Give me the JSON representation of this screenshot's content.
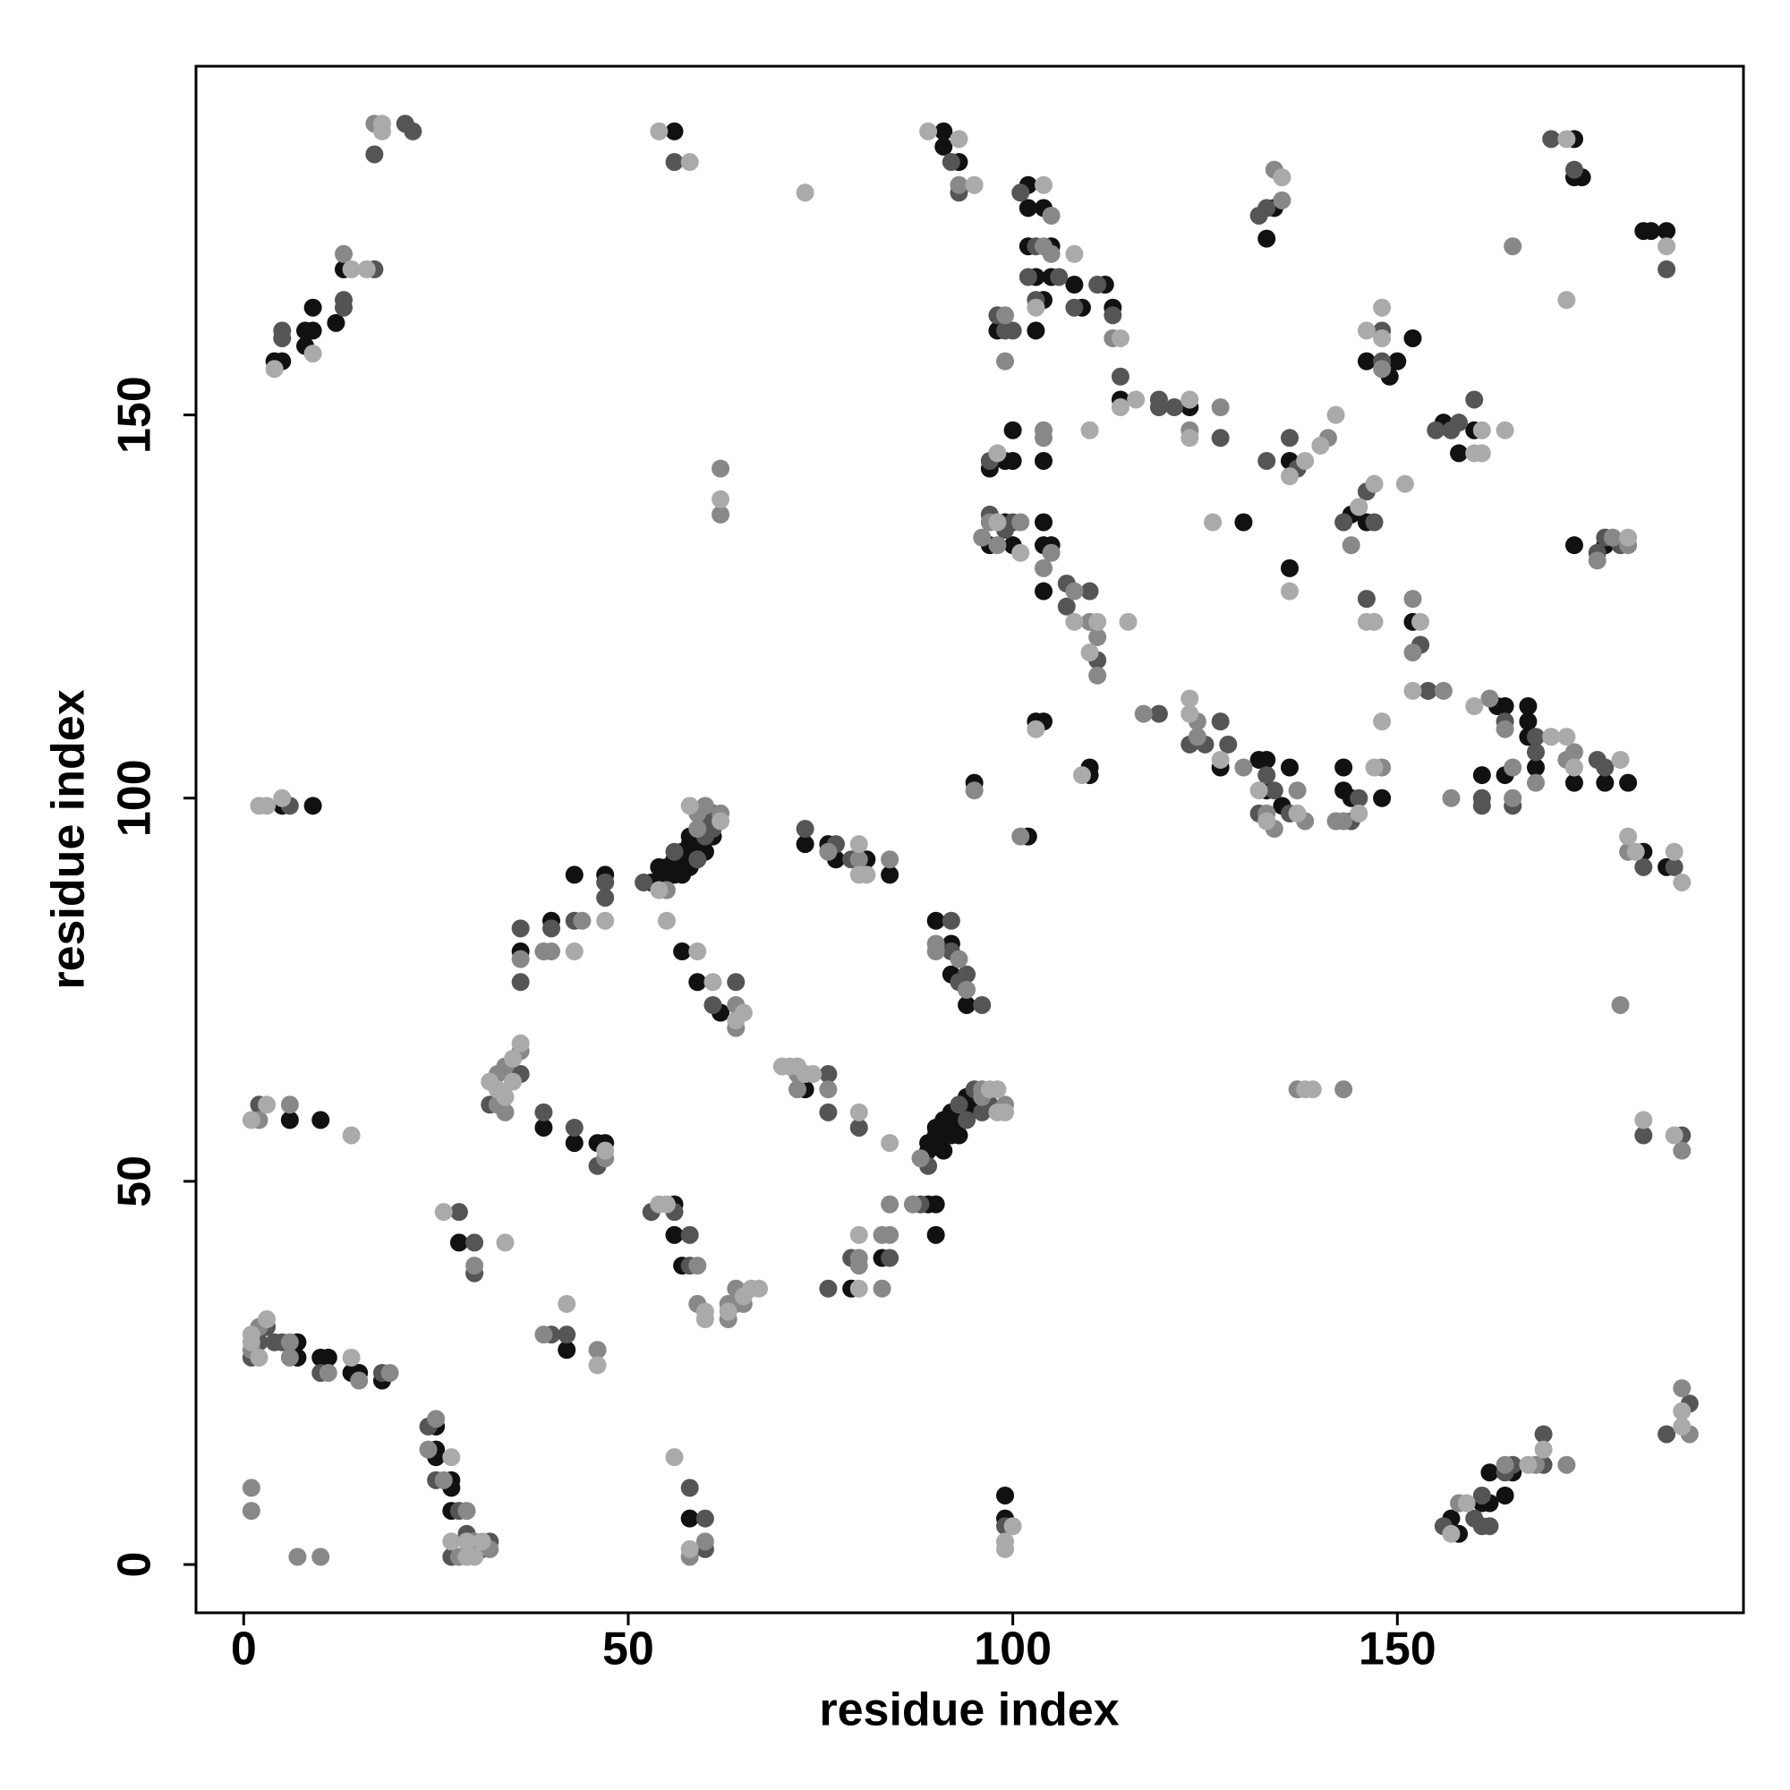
{
  "chart_data": {
    "type": "scatter",
    "xlabel": "residue index",
    "ylabel": "residue index",
    "xlim": [
      -6.2,
      195
    ],
    "ylim": [
      -6.3,
      195.5
    ],
    "xticks": [
      0,
      50,
      100,
      150
    ],
    "yticks": [
      0,
      50,
      100,
      150
    ],
    "series": [
      {
        "color": "#111111",
        "x": [
          4,
          5,
          8,
          8,
          9,
          9,
          12,
          13,
          56,
          91,
          91,
          93,
          102,
          102,
          104,
          102,
          105,
          103,
          105,
          108,
          109,
          112,
          113,
          114,
          123,
          98,
          103,
          104,
          97,
          99,
          100,
          100,
          104,
          97,
          99,
          100,
          104,
          104,
          105,
          104,
          103,
          104,
          102,
          95,
          110,
          110,
          127,
          132,
          133,
          133,
          135,
          136,
          134,
          133,
          130,
          136,
          136,
          144,
          146,
          152,
          149,
          150,
          152,
          146,
          156,
          158,
          160,
          143,
          143,
          144,
          148,
          161,
          163,
          164,
          164,
          167,
          167,
          167,
          168,
          173,
          177,
          180,
          173,
          177,
          173,
          173,
          174,
          182,
          183,
          185,
          182,
          185,
          158,
          157,
          161,
          162,
          162,
          165,
          164,
          99,
          99,
          5,
          9,
          6,
          10,
          7,
          7,
          10,
          11,
          14,
          15,
          18,
          25,
          25,
          25,
          27,
          27,
          27,
          28,
          42,
          36,
          40,
          43,
          47,
          39,
          43,
          46,
          47,
          53,
          54,
          54,
          55,
          55,
          56,
          56,
          57,
          57,
          57,
          58,
          58,
          58,
          59,
          60,
          61,
          57,
          59,
          62,
          73,
          73,
          76,
          77,
          81,
          84,
          90,
          92,
          92,
          94,
          89,
          89,
          90,
          90,
          90,
          91,
          91,
          92,
          91,
          92,
          92,
          93,
          93,
          94,
          94,
          95,
          56,
          56,
          57,
          79,
          83,
          89,
          90,
          90,
          58
        ],
        "values": [
          157,
          157,
          159,
          161,
          161,
          164,
          162,
          169,
          187,
          187,
          185,
          183,
          180,
          177,
          177,
          172,
          172,
          168,
          168,
          167,
          164,
          167,
          164,
          152,
          151,
          161,
          161,
          165,
          143,
          144,
          144,
          148,
          144,
          133,
          136,
          133,
          136,
          133,
          133,
          127,
          110,
          110,
          95,
          102,
          103,
          104,
          104,
          105,
          105,
          101,
          99,
          104,
          177,
          173,
          136,
          144,
          130,
          137,
          136,
          123,
          155,
          157,
          160,
          157,
          149,
          145,
          148,
          104,
          101,
          100,
          100,
          103,
          112,
          112,
          103,
          112,
          110,
          108,
          104,
          102,
          102,
          102,
          133,
          133,
          186,
          181,
          181,
          174,
          174,
          174,
          93,
          91,
          4,
          6,
          8,
          8,
          12,
          12,
          9,
          9,
          6,
          99,
          99,
          58,
          58,
          29,
          27,
          27,
          27,
          25,
          25,
          24,
          18,
          15,
          14,
          11,
          10,
          7,
          42,
          28,
          80,
          84,
          90,
          90,
          57,
          55,
          55,
          55,
          89,
          89,
          91,
          90,
          91,
          90,
          92,
          90,
          92,
          93,
          91,
          94,
          95,
          94,
          93,
          95,
          80,
          76,
          72,
          62,
          94,
          94,
          92,
          92,
          90,
          84,
          81,
          77,
          73,
          54,
          55,
          55,
          56,
          57,
          54,
          56,
          56,
          58,
          57,
          59,
          58,
          56,
          59,
          61,
          60,
          47,
          43,
          39,
          36,
          40,
          47,
          47,
          43,
          6
        ]
      },
      {
        "color": "#555555",
        "x": [
          5,
          5,
          13,
          13,
          17,
          21,
          22,
          17,
          56,
          92,
          93,
          101,
          103,
          102,
          106,
          108,
          111,
          113,
          114,
          119,
          119,
          121,
          127,
          98,
          99,
          100,
          103,
          97,
          97,
          99,
          100,
          107,
          107,
          110,
          111,
          119,
          123,
          125,
          127,
          128,
          133,
          134,
          132,
          136,
          133,
          132,
          136,
          137,
          133,
          143,
          146,
          147,
          146,
          153,
          154,
          148,
          148,
          157,
          158,
          160,
          155,
          145,
          144,
          161,
          161,
          164,
          165,
          168,
          168,
          176,
          177,
          176,
          177,
          179,
          170,
          173,
          185,
          182,
          186,
          182,
          187,
          188,
          185,
          156,
          160,
          161,
          161,
          162,
          164,
          165,
          169,
          169,
          99,
          6,
          2,
          3,
          2,
          4,
          5,
          10,
          18,
          1,
          24,
          25,
          28,
          29,
          32,
          27,
          31,
          28,
          30,
          30,
          40,
          42,
          32,
          36,
          36,
          36,
          40,
          43,
          47,
          47,
          39,
          43,
          46,
          52,
          56,
          59,
          60,
          60,
          61,
          61,
          61,
          64,
          76,
          76,
          80,
          73,
          77,
          79,
          92,
          92,
          93,
          96,
          94,
          89,
          93,
          94,
          95,
          96,
          97,
          53,
          56,
          58,
          58,
          76,
          79,
          84,
          88,
          58,
          60,
          60
        ],
        "values": [
          160,
          161,
          164,
          165,
          169,
          188,
          187,
          184,
          183,
          183,
          179,
          179,
          172,
          168,
          168,
          164,
          167,
          163,
          155,
          152,
          151,
          151,
          147,
          163,
          161,
          161,
          165,
          144,
          137,
          135,
          136,
          128,
          125,
          127,
          118,
          111,
          107,
          107,
          110,
          107,
          103,
          101,
          98,
          98,
          177,
          176,
          147,
          143,
          144,
          136,
          140,
          136,
          126,
          120,
          114,
          161,
          157,
          148,
          149,
          152,
          148,
          100,
          97,
          100,
          99,
          110,
          99,
          108,
          106,
          105,
          104,
          132,
          134,
          133,
          186,
          182,
          169,
          91,
          91,
          56,
          56,
          21,
          17,
          5,
          6,
          9,
          5,
          5,
          12,
          13,
          17,
          13,
          5,
          99,
          60,
          31,
          29,
          29,
          29,
          25,
          25,
          27,
          18,
          11,
          7,
          4,
          3,
          1,
          2,
          46,
          42,
          38,
          30,
          30,
          60,
          64,
          83,
          76,
          83,
          84,
          89,
          87,
          59,
          57,
          52,
          89,
          93,
          92,
          95,
          97,
          96,
          98,
          73,
          76,
          64,
          59,
          57,
          96,
          94,
          92,
          84,
          80,
          76,
          73,
          77,
          52,
          60,
          58,
          62,
          59,
          60,
          46,
          46,
          43,
          39,
          36,
          40,
          40,
          47,
          10,
          6,
          2
        ]
      },
      {
        "color": "#888888",
        "x": [
          13,
          17,
          93,
          105,
          104,
          105,
          113,
          127,
          123,
          99,
          99,
          104,
          104,
          97,
          96,
          98,
          101,
          105,
          104,
          108,
          110,
          111,
          111,
          101,
          95,
          117,
          124,
          124,
          130,
          133,
          134,
          137,
          138,
          134,
          135,
          141,
          144,
          152,
          152,
          156,
          148,
          143,
          148,
          142,
          157,
          162,
          164,
          165,
          165,
          168,
          172,
          173,
          176,
          178,
          180,
          165,
          180,
          179,
          187,
          187,
          188,
          158,
          164,
          168,
          172,
          137,
          143,
          62,
          62,
          2,
          6,
          1,
          2,
          6,
          6,
          11,
          15,
          19,
          1,
          1,
          7,
          10,
          25,
          24,
          26,
          29,
          30,
          32,
          28,
          30,
          39,
          46,
          33,
          34,
          33,
          34,
          36,
          36,
          39,
          40,
          44,
          47,
          55,
          59,
          59,
          60,
          62,
          64,
          64,
          72,
          72,
          76,
          76,
          80,
          84,
          90,
          90,
          93,
          94,
          88,
          96,
          96,
          99,
          59,
          59,
          63,
          63,
          64,
          64,
          65,
          80,
          80,
          83,
          84,
          83,
          84,
          87,
          60,
          58
        ],
        "values": [
          171,
          188,
          180,
          176,
          172,
          171,
          160,
          151,
          148,
          163,
          157,
          148,
          147,
          136,
          134,
          133,
          136,
          132,
          130,
          127,
          123,
          121,
          116,
          95,
          101,
          111,
          110,
          108,
          104,
          98,
          96,
          101,
          97,
          182,
          178,
          147,
          133,
          126,
          119,
          114,
          156,
          97,
          104,
          97,
          100,
          113,
          109,
          104,
          100,
          102,
          105,
          106,
          131,
          134,
          133,
          172,
          93,
          73,
          54,
          23,
          17,
          8,
          13,
          13,
          13,
          62,
          62,
          143,
          137,
          58,
          60,
          28,
          31,
          29,
          27,
          25,
          24,
          25,
          10,
          7,
          1,
          1,
          19,
          15,
          11,
          7,
          3,
          2,
          1,
          39,
          30,
          28,
          64,
          65,
          60,
          59,
          67,
          79,
          80,
          80,
          84,
          53,
          88,
          96,
          98,
          99,
          98,
          73,
          70,
          64,
          62,
          62,
          93,
          92,
          92,
          81,
          80,
          79,
          75,
          53,
          61,
          62,
          60,
          39,
          34,
          34,
          32,
          36,
          34,
          34,
          40,
          39,
          43,
          43,
          36,
          47,
          47,
          3,
          1
        ]
      },
      {
        "color": "#aaaaaa",
        "x": [
          9,
          14,
          16,
          4,
          18,
          18,
          54,
          58,
          73,
          89,
          93,
          95,
          104,
          108,
          114,
          114,
          116,
          123,
          123,
          103,
          98,
          110,
          98,
          101,
          108,
          111,
          110,
          115,
          103,
          109,
          123,
          123,
          127,
          132,
          133,
          137,
          135,
          136,
          138,
          140,
          142,
          136,
          126,
          145,
          147,
          151,
          146,
          147,
          153,
          152,
          146,
          148,
          148,
          161,
          160,
          161,
          164,
          145,
          147,
          148,
          160,
          170,
          172,
          173,
          179,
          180,
          172,
          185,
          172,
          180,
          181,
          186,
          187,
          182,
          186,
          187,
          187,
          157,
          159,
          167,
          169,
          100,
          99,
          99,
          138,
          139,
          62,
          2,
          3,
          5,
          1,
          3,
          14,
          1,
          1,
          3,
          14,
          2,
          27,
          27,
          29,
          31,
          29,
          30,
          26,
          34,
          42,
          46,
          32,
          33,
          35,
          34,
          35,
          36,
          43,
          47,
          47,
          54,
          58,
          62,
          55,
          59,
          61,
          64,
          65,
          70,
          71,
          72,
          73,
          74,
          80,
          84,
          80,
          80,
          81,
          97,
          98,
          98,
          99,
          54,
          55,
          60,
          60,
          63,
          65,
          66,
          67,
          80,
          80,
          56,
          58
        ],
        "values": [
          158,
          169,
          169,
          156,
          188,
          187,
          187,
          183,
          179,
          187,
          186,
          180,
          180,
          171,
          160,
          151,
          152,
          152,
          147,
          164,
          145,
          148,
          136,
          132,
          123,
          123,
          119,
          123,
          109,
          103,
          113,
          111,
          105,
          101,
          97,
          98,
          181,
          142,
          144,
          146,
          150,
          127,
          136,
          138,
          141,
          141,
          123,
          123,
          123,
          114,
          161,
          164,
          160,
          148,
          145,
          145,
          148,
          98,
          104,
          110,
          112,
          108,
          108,
          104,
          105,
          134,
          186,
          172,
          165,
          95,
          93,
          93,
          89,
          58,
          56,
          18,
          20,
          4,
          8,
          13,
          15,
          5,
          3,
          2,
          62,
          62,
          139,
          99,
          99,
          100,
          58,
          60,
          56,
          29,
          30,
          32,
          27,
          27,
          14,
          3,
          3,
          3,
          1,
          1,
          46,
          42,
          34,
          26,
          63,
          62,
          63,
          61,
          66,
          68,
          80,
          84,
          54,
          88,
          99,
          97,
          84,
          80,
          76,
          71,
          72,
          65,
          65,
          65,
          64,
          64,
          59,
          55,
          94,
          90,
          90,
          62,
          62,
          59,
          59,
          47,
          47,
          33,
          32,
          33,
          35,
          36,
          36,
          36,
          43,
          14,
          2
        ]
      }
    ]
  }
}
